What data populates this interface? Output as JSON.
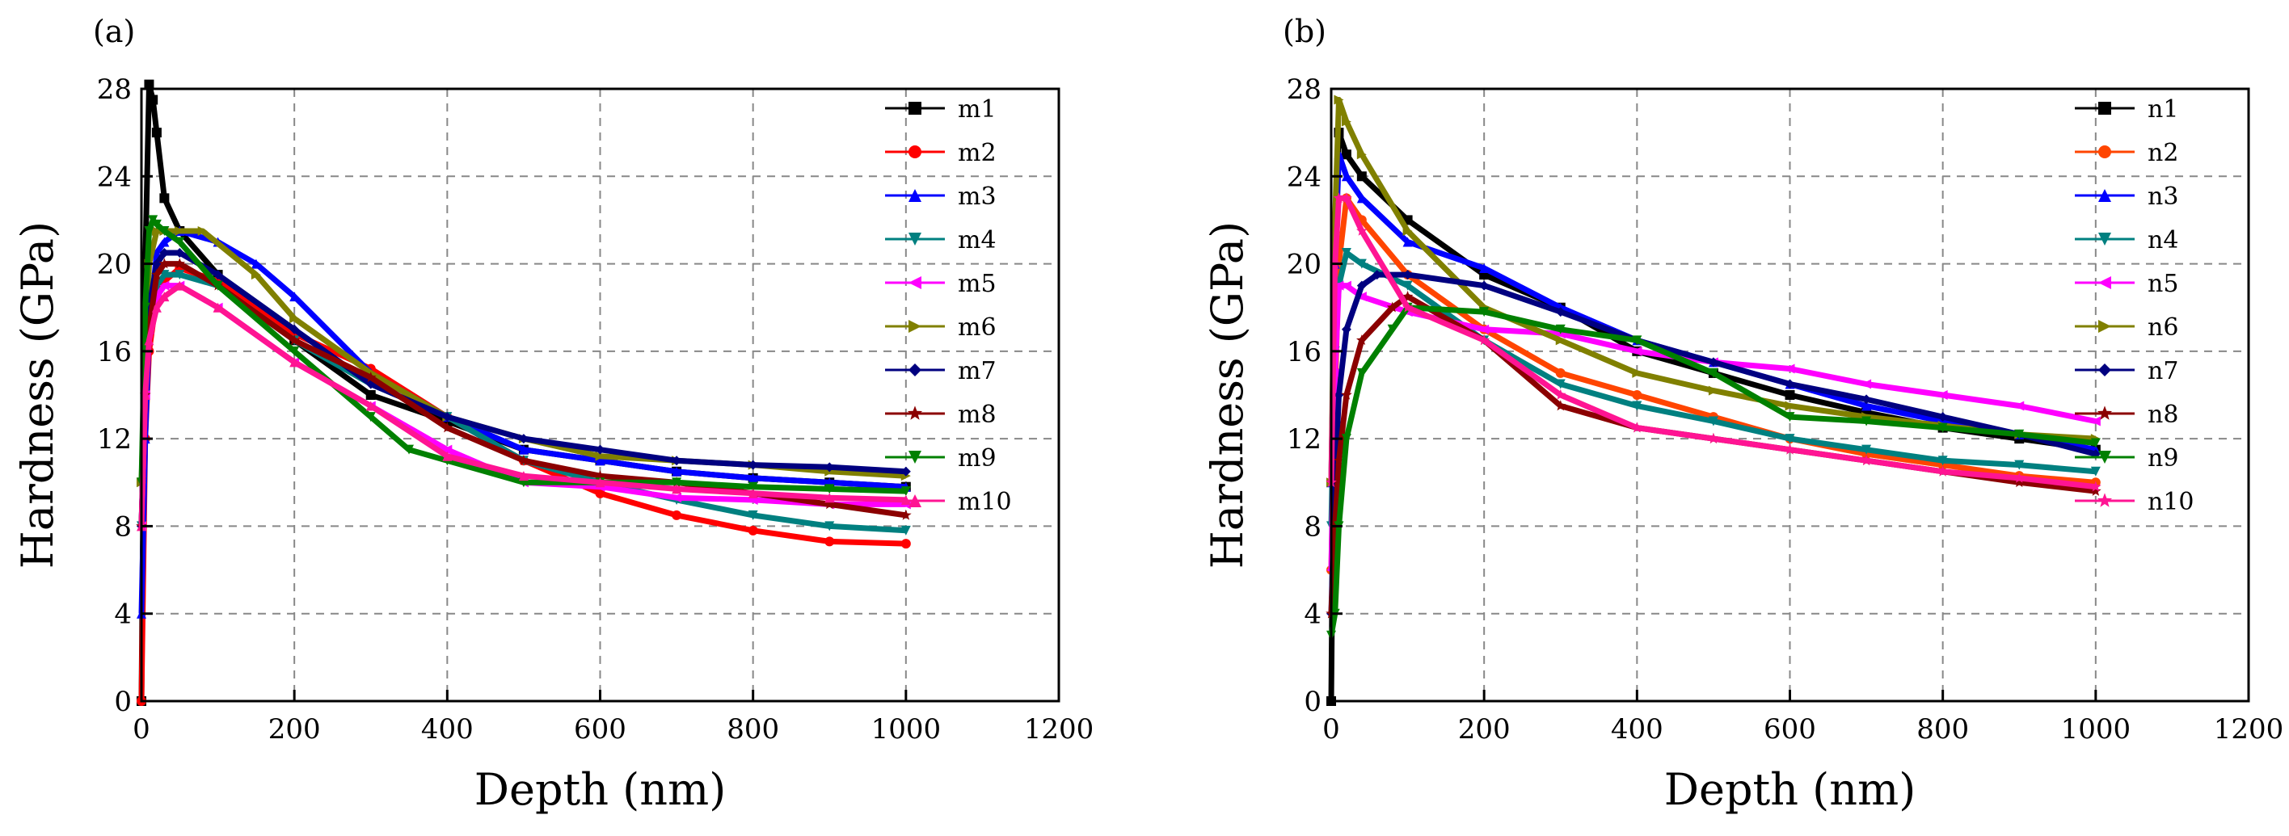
{
  "chart_data": [
    {
      "panel_label": "(a)",
      "type": "line",
      "xlabel": "Depth (nm)",
      "ylabel": "Hardness (GPa)",
      "xlim": [
        0,
        1200
      ],
      "ylim": [
        0,
        28
      ],
      "xticks": [
        0,
        200,
        400,
        600,
        800,
        1000,
        1200
      ],
      "yticks": [
        0,
        4,
        8,
        12,
        16,
        20,
        24,
        28
      ],
      "grid": true,
      "legend_position": "top-right",
      "series": [
        {
          "name": "m1",
          "color": "#000000",
          "marker": "square",
          "x": [
            0,
            5,
            10,
            15,
            20,
            30,
            50,
            100,
            200,
            300,
            400,
            500,
            600,
            700,
            800,
            900,
            1000
          ],
          "y": [
            0,
            20,
            28.2,
            27.5,
            26,
            23,
            21.5,
            19.5,
            16.5,
            14,
            12.8,
            11.5,
            11,
            10.5,
            10.2,
            10,
            9.8
          ]
        },
        {
          "name": "m2",
          "color": "#ff0000",
          "marker": "circle",
          "x": [
            0,
            5,
            10,
            20,
            30,
            50,
            100,
            200,
            300,
            400,
            500,
            600,
            700,
            800,
            900,
            1000
          ],
          "y": [
            0,
            12,
            16,
            18.5,
            19.2,
            19.8,
            19.2,
            16.8,
            15.2,
            13,
            11,
            9.5,
            8.5,
            7.8,
            7.3,
            7.2
          ]
        },
        {
          "name": "m3",
          "color": "#0000ff",
          "marker": "triangle-up",
          "x": [
            0,
            5,
            10,
            20,
            30,
            50,
            100,
            150,
            200,
            300,
            400,
            500,
            600,
            700,
            800,
            900,
            1000
          ],
          "y": [
            4,
            12,
            17,
            20.5,
            21,
            21.5,
            21,
            20,
            18.5,
            15,
            13,
            11.5,
            11,
            10.5,
            10.2,
            10,
            9.8
          ]
        },
        {
          "name": "m4",
          "color": "#008080",
          "marker": "triangle-down",
          "x": [
            0,
            5,
            10,
            20,
            30,
            50,
            100,
            200,
            300,
            400,
            500,
            600,
            700,
            800,
            900,
            1000
          ],
          "y": [
            8,
            14,
            17,
            19,
            19.5,
            19.5,
            19,
            16.5,
            14.5,
            13,
            11,
            10,
            9.2,
            8.5,
            8,
            7.8
          ]
        },
        {
          "name": "m5",
          "color": "#ff00ff",
          "marker": "triangle-left",
          "x": [
            0,
            5,
            10,
            20,
            30,
            50,
            100,
            200,
            300,
            400,
            500,
            600,
            700,
            800,
            900,
            1000
          ],
          "y": [
            8,
            14,
            17,
            18.5,
            19,
            19,
            18,
            15.5,
            13.5,
            11.5,
            10,
            9.8,
            9.3,
            9.2,
            9,
            9
          ]
        },
        {
          "name": "m6",
          "color": "#808000",
          "marker": "triangle-right",
          "x": [
            0,
            5,
            10,
            20,
            30,
            50,
            80,
            150,
            200,
            300,
            400,
            500,
            600,
            700,
            800,
            900,
            1000
          ],
          "y": [
            10,
            16,
            20,
            21.5,
            21.5,
            21.5,
            21.5,
            19.5,
            17.5,
            15,
            13,
            12,
            11.2,
            11,
            10.8,
            10.5,
            10.3
          ]
        },
        {
          "name": "m7",
          "color": "#000080",
          "marker": "diamond",
          "x": [
            0,
            5,
            10,
            20,
            30,
            50,
            100,
            200,
            300,
            400,
            500,
            600,
            700,
            800,
            900,
            1000
          ],
          "y": [
            8,
            15,
            18,
            20,
            20.5,
            20.5,
            19.5,
            17,
            14.5,
            13,
            12,
            11.5,
            11,
            10.8,
            10.7,
            10.5
          ]
        },
        {
          "name": "m8",
          "color": "#8b0000",
          "marker": "star",
          "x": [
            0,
            5,
            10,
            20,
            30,
            50,
            100,
            200,
            300,
            400,
            500,
            600,
            700,
            800,
            900,
            1000
          ],
          "y": [
            8,
            14,
            17,
            19.5,
            20,
            20,
            19,
            16.5,
            14.8,
            12.5,
            11,
            10.3,
            10,
            9.5,
            9,
            8.5
          ]
        },
        {
          "name": "m9",
          "color": "#008000",
          "marker": "triangle-down",
          "x": [
            0,
            5,
            10,
            15,
            20,
            30,
            50,
            100,
            200,
            300,
            350,
            400,
            500,
            600,
            700,
            800,
            900,
            1000
          ],
          "y": [
            10,
            18,
            21.5,
            22,
            21.8,
            21.5,
            21,
            19,
            16,
            13,
            11.5,
            11,
            10,
            10,
            10,
            9.8,
            9.7,
            9.6
          ]
        },
        {
          "name": "m10",
          "color": "#ff1493",
          "marker": "triangle-up",
          "x": [
            0,
            5,
            10,
            20,
            30,
            50,
            100,
            200,
            300,
            400,
            500,
            600,
            700,
            800,
            900,
            1000
          ],
          "y": [
            8,
            14,
            16.5,
            18,
            18.5,
            19,
            18,
            15.5,
            13.5,
            11.2,
            10.3,
            10,
            9.7,
            9.5,
            9.3,
            9.2
          ]
        }
      ]
    },
    {
      "panel_label": "(b)",
      "type": "line",
      "xlabel": "Depth (nm)",
      "ylabel": "Hardness (GPa)",
      "xlim": [
        0,
        1200
      ],
      "ylim": [
        0,
        28
      ],
      "xticks": [
        0,
        200,
        400,
        600,
        800,
        1000,
        1200
      ],
      "yticks": [
        0,
        4,
        8,
        12,
        16,
        20,
        24,
        28
      ],
      "grid": true,
      "legend_position": "top-right",
      "series": [
        {
          "name": "n1",
          "color": "#000000",
          "marker": "square",
          "x": [
            0,
            5,
            10,
            20,
            40,
            100,
            200,
            300,
            400,
            500,
            600,
            700,
            800,
            900,
            1000
          ],
          "y": [
            0,
            20,
            26,
            25,
            24,
            22,
            19.5,
            18,
            16,
            15,
            14,
            13.2,
            12.5,
            12,
            11.5
          ]
        },
        {
          "name": "n2",
          "color": "#ff4500",
          "marker": "circle",
          "x": [
            0,
            5,
            10,
            20,
            40,
            100,
            200,
            300,
            400,
            500,
            600,
            700,
            800,
            900,
            1000
          ],
          "y": [
            6,
            14,
            20,
            23,
            22,
            19.5,
            17,
            15,
            14,
            13,
            12,
            11.3,
            10.8,
            10.3,
            10
          ]
        },
        {
          "name": "n3",
          "color": "#0000ff",
          "marker": "triangle-up",
          "x": [
            0,
            5,
            10,
            20,
            40,
            100,
            200,
            300,
            400,
            500,
            600,
            700,
            800,
            900,
            1000
          ],
          "y": [
            10,
            20,
            25,
            24,
            23,
            21,
            19.8,
            18,
            16.5,
            15.5,
            14.5,
            13.5,
            12.8,
            12.2,
            11.5
          ]
        },
        {
          "name": "n4",
          "color": "#008080",
          "marker": "triangle-down",
          "x": [
            0,
            5,
            10,
            20,
            40,
            100,
            200,
            300,
            400,
            500,
            600,
            700,
            800,
            900,
            1000
          ],
          "y": [
            8,
            16,
            19,
            20.5,
            20,
            19,
            16.5,
            14.5,
            13.5,
            12.8,
            12,
            11.5,
            11,
            10.8,
            10.5
          ]
        },
        {
          "name": "n5",
          "color": "#ff00ff",
          "marker": "triangle-left",
          "x": [
            0,
            5,
            10,
            20,
            40,
            100,
            200,
            300,
            400,
            500,
            600,
            700,
            800,
            900,
            1000
          ],
          "y": [
            6,
            15,
            19,
            19,
            18.5,
            17.8,
            17,
            16.8,
            16,
            15.5,
            15.2,
            14.5,
            14,
            13.5,
            12.8
          ]
        },
        {
          "name": "n6",
          "color": "#808000",
          "marker": "triangle-right",
          "x": [
            0,
            5,
            10,
            20,
            40,
            100,
            200,
            300,
            400,
            500,
            600,
            700,
            800,
            900,
            1000
          ],
          "y": [
            10,
            22,
            27.5,
            26.5,
            25,
            21.5,
            18,
            16.5,
            15,
            14.2,
            13.5,
            13,
            12.6,
            12.2,
            12
          ]
        },
        {
          "name": "n7",
          "color": "#000080",
          "marker": "diamond",
          "x": [
            0,
            5,
            10,
            20,
            40,
            60,
            100,
            200,
            300,
            400,
            500,
            600,
            700,
            800,
            900,
            1000
          ],
          "y": [
            4,
            10,
            14,
            17,
            19,
            19.5,
            19.5,
            19,
            17.8,
            16.5,
            15.5,
            14.5,
            13.8,
            13,
            12.2,
            11.3
          ]
        },
        {
          "name": "n8",
          "color": "#8b0000",
          "marker": "star",
          "x": [
            0,
            5,
            10,
            20,
            40,
            80,
            100,
            200,
            300,
            400,
            500,
            600,
            700,
            800,
            900,
            1000
          ],
          "y": [
            4,
            8,
            11,
            14,
            16.5,
            18,
            18.5,
            16.5,
            13.5,
            12.5,
            12,
            11.5,
            11,
            10.5,
            10,
            9.6
          ]
        },
        {
          "name": "n9",
          "color": "#008000",
          "marker": "triangle-down",
          "x": [
            0,
            5,
            10,
            20,
            40,
            80,
            100,
            200,
            300,
            400,
            500,
            600,
            700,
            800,
            900,
            1000
          ],
          "y": [
            3,
            4,
            8,
            12,
            15,
            17,
            18,
            17.8,
            17,
            16.5,
            15,
            13,
            12.8,
            12.5,
            12.2,
            11.8
          ]
        },
        {
          "name": "n10",
          "color": "#ff1493",
          "marker": "star",
          "x": [
            0,
            5,
            10,
            20,
            40,
            100,
            200,
            300,
            400,
            500,
            600,
            700,
            800,
            900,
            1000
          ],
          "y": [
            10,
            20,
            23,
            23,
            21.5,
            18,
            16.5,
            14,
            12.5,
            12,
            11.5,
            11,
            10.5,
            10.2,
            9.8
          ]
        }
      ]
    }
  ]
}
